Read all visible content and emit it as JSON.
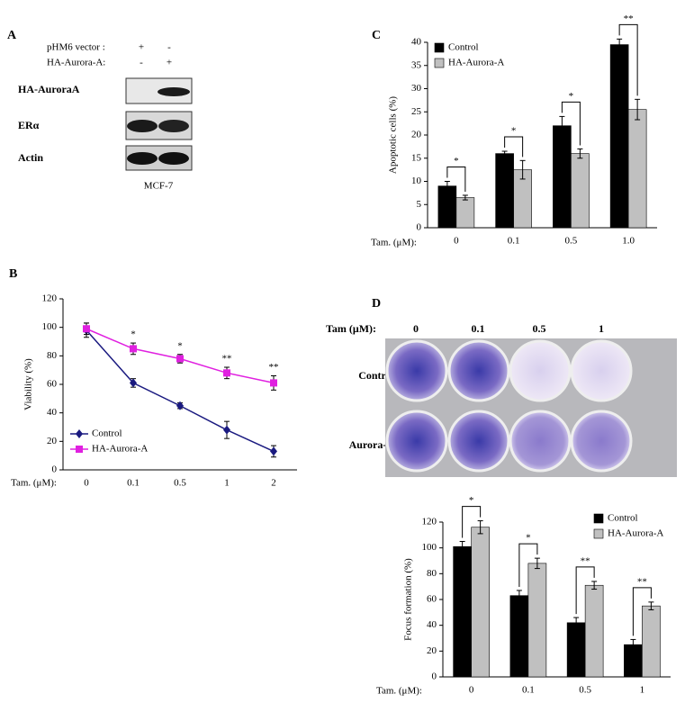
{
  "panel_a": {
    "letter": "A",
    "rows": [
      {
        "name": "pHM6 vector :",
        "signs": [
          "+",
          "-"
        ]
      },
      {
        "name": "HA-Aurora-A:",
        "signs": [
          "-",
          "+"
        ]
      }
    ],
    "blots": [
      "HA-AuroraA",
      "ERα",
      "Actin"
    ],
    "cell_line": "MCF-7"
  },
  "panel_d_plates": {
    "axis_label": "Tam (μM):",
    "columns": [
      "0",
      "0.1",
      "0.5",
      "1"
    ],
    "rows": [
      "Control",
      "Aurora-A"
    ]
  },
  "chart_data": [
    {
      "type": "line",
      "panel": "B",
      "xlabel": "Tam. (μM):",
      "ylabel": "Viability (%)",
      "categories": [
        "0",
        "0.1",
        "0.5",
        "1",
        "2"
      ],
      "ylim": [
        0,
        120
      ],
      "yticks": [
        0,
        20,
        40,
        60,
        80,
        100,
        120
      ],
      "legend": "lower left",
      "series": [
        {
          "name": "Control",
          "color": "#1a1a80",
          "marker": "diamond",
          "values": [
            98,
            61,
            45,
            28,
            13
          ],
          "errors": [
            5,
            3,
            2,
            6,
            4
          ]
        },
        {
          "name": "HA-Aurora-A",
          "color": "#e020e0",
          "marker": "square",
          "values": [
            99,
            85,
            78,
            68,
            61
          ],
          "errors": [
            4,
            4,
            3,
            4,
            5
          ]
        }
      ],
      "significance": [
        null,
        "*",
        "*",
        "**",
        "**"
      ]
    },
    {
      "type": "bar",
      "panel": "C",
      "xlabel": "Tam. (μM):",
      "ylabel": "Apoptotic cells (%)",
      "categories": [
        "0",
        "0.1",
        "0.5",
        "1.0"
      ],
      "ylim": [
        0,
        40
      ],
      "yticks": [
        0,
        5,
        10,
        15,
        20,
        25,
        30,
        35,
        40
      ],
      "legend": "upper left",
      "series": [
        {
          "name": "Control",
          "color": "#000000",
          "values": [
            9,
            16,
            22,
            39.5
          ],
          "errors": [
            1,
            0.5,
            2,
            1.2
          ]
        },
        {
          "name": "HA-Aurora-A",
          "color": "#c0c0c0",
          "values": [
            6.5,
            12.5,
            16,
            25.5
          ],
          "errors": [
            0.5,
            2,
            1,
            2.2
          ]
        }
      ],
      "significance": [
        "*",
        "*",
        "*",
        "**"
      ]
    },
    {
      "type": "bar",
      "panel": "D",
      "xlabel": "Tam. (μM):",
      "ylabel": "Focus formation (%)",
      "categories": [
        "0",
        "0.1",
        "0.5",
        "1"
      ],
      "ylim": [
        0,
        120
      ],
      "yticks": [
        0,
        20,
        40,
        60,
        80,
        100,
        120
      ],
      "legend": "upper right",
      "series": [
        {
          "name": "Control",
          "color": "#000000",
          "values": [
            101,
            63,
            42,
            25
          ],
          "errors": [
            4,
            4,
            4,
            4
          ]
        },
        {
          "name": "HA-Aurora-A",
          "color": "#c0c0c0",
          "values": [
            116,
            88,
            71,
            55
          ],
          "errors": [
            5,
            4,
            3,
            3
          ]
        }
      ],
      "significance": [
        "*",
        "*",
        "**",
        "**"
      ]
    }
  ]
}
